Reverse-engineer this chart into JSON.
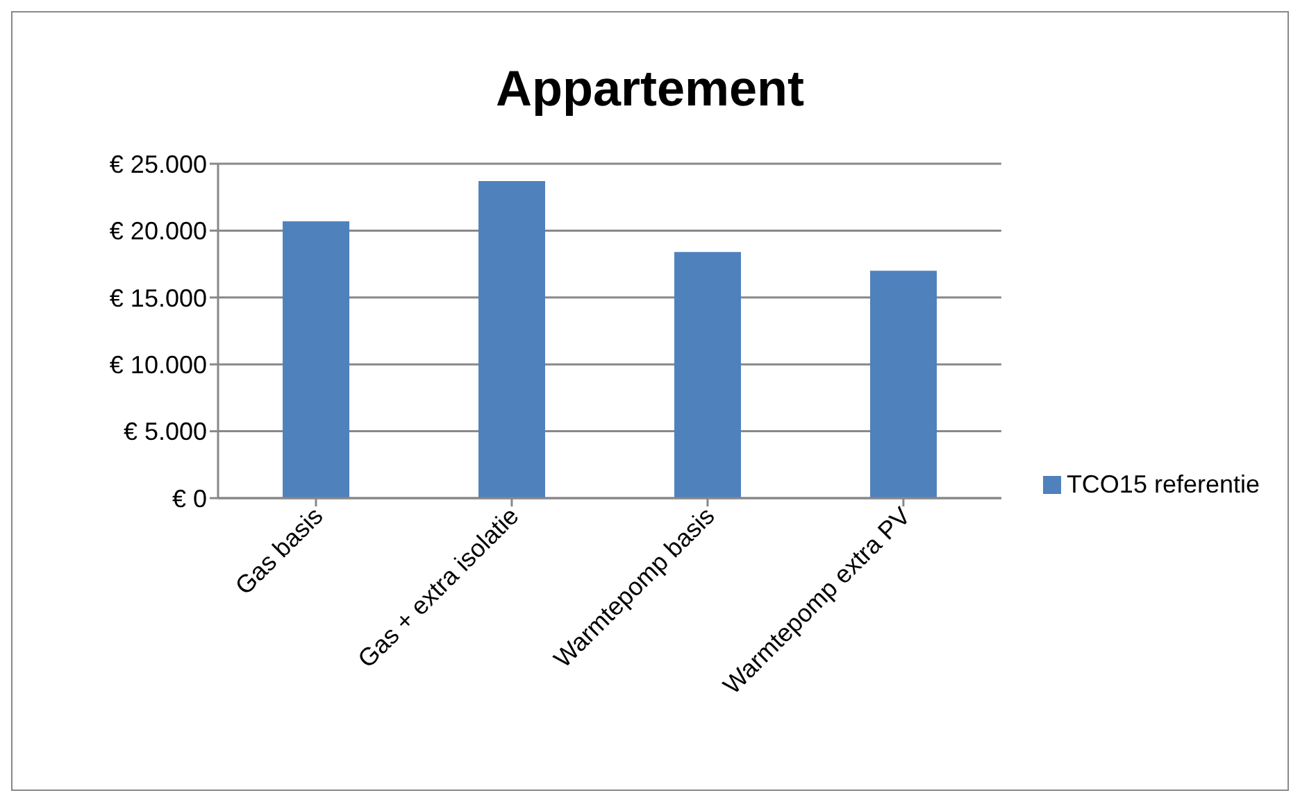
{
  "chart_data": {
    "type": "bar",
    "title": "Appartement",
    "categories": [
      "Gas basis",
      "Gas + extra isolatie",
      "Warmtepomp basis",
      "Warmtepomp extra PV"
    ],
    "series": [
      {
        "name": "TCO15 referentie",
        "color": "#4f81bd",
        "values": [
          20700,
          23700,
          18400,
          17000
        ]
      }
    ],
    "ylim": [
      0,
      25000
    ],
    "yticks": [
      {
        "value": 0,
        "label": "€ 0"
      },
      {
        "value": 5000,
        "label": "€ 5.000"
      },
      {
        "value": 10000,
        "label": "€ 10.000"
      },
      {
        "value": 15000,
        "label": "€ 15.000"
      },
      {
        "value": 20000,
        "label": "€ 20.000"
      },
      {
        "value": 25000,
        "label": "€ 25.000"
      }
    ],
    "grid": "y",
    "legend": "right"
  }
}
